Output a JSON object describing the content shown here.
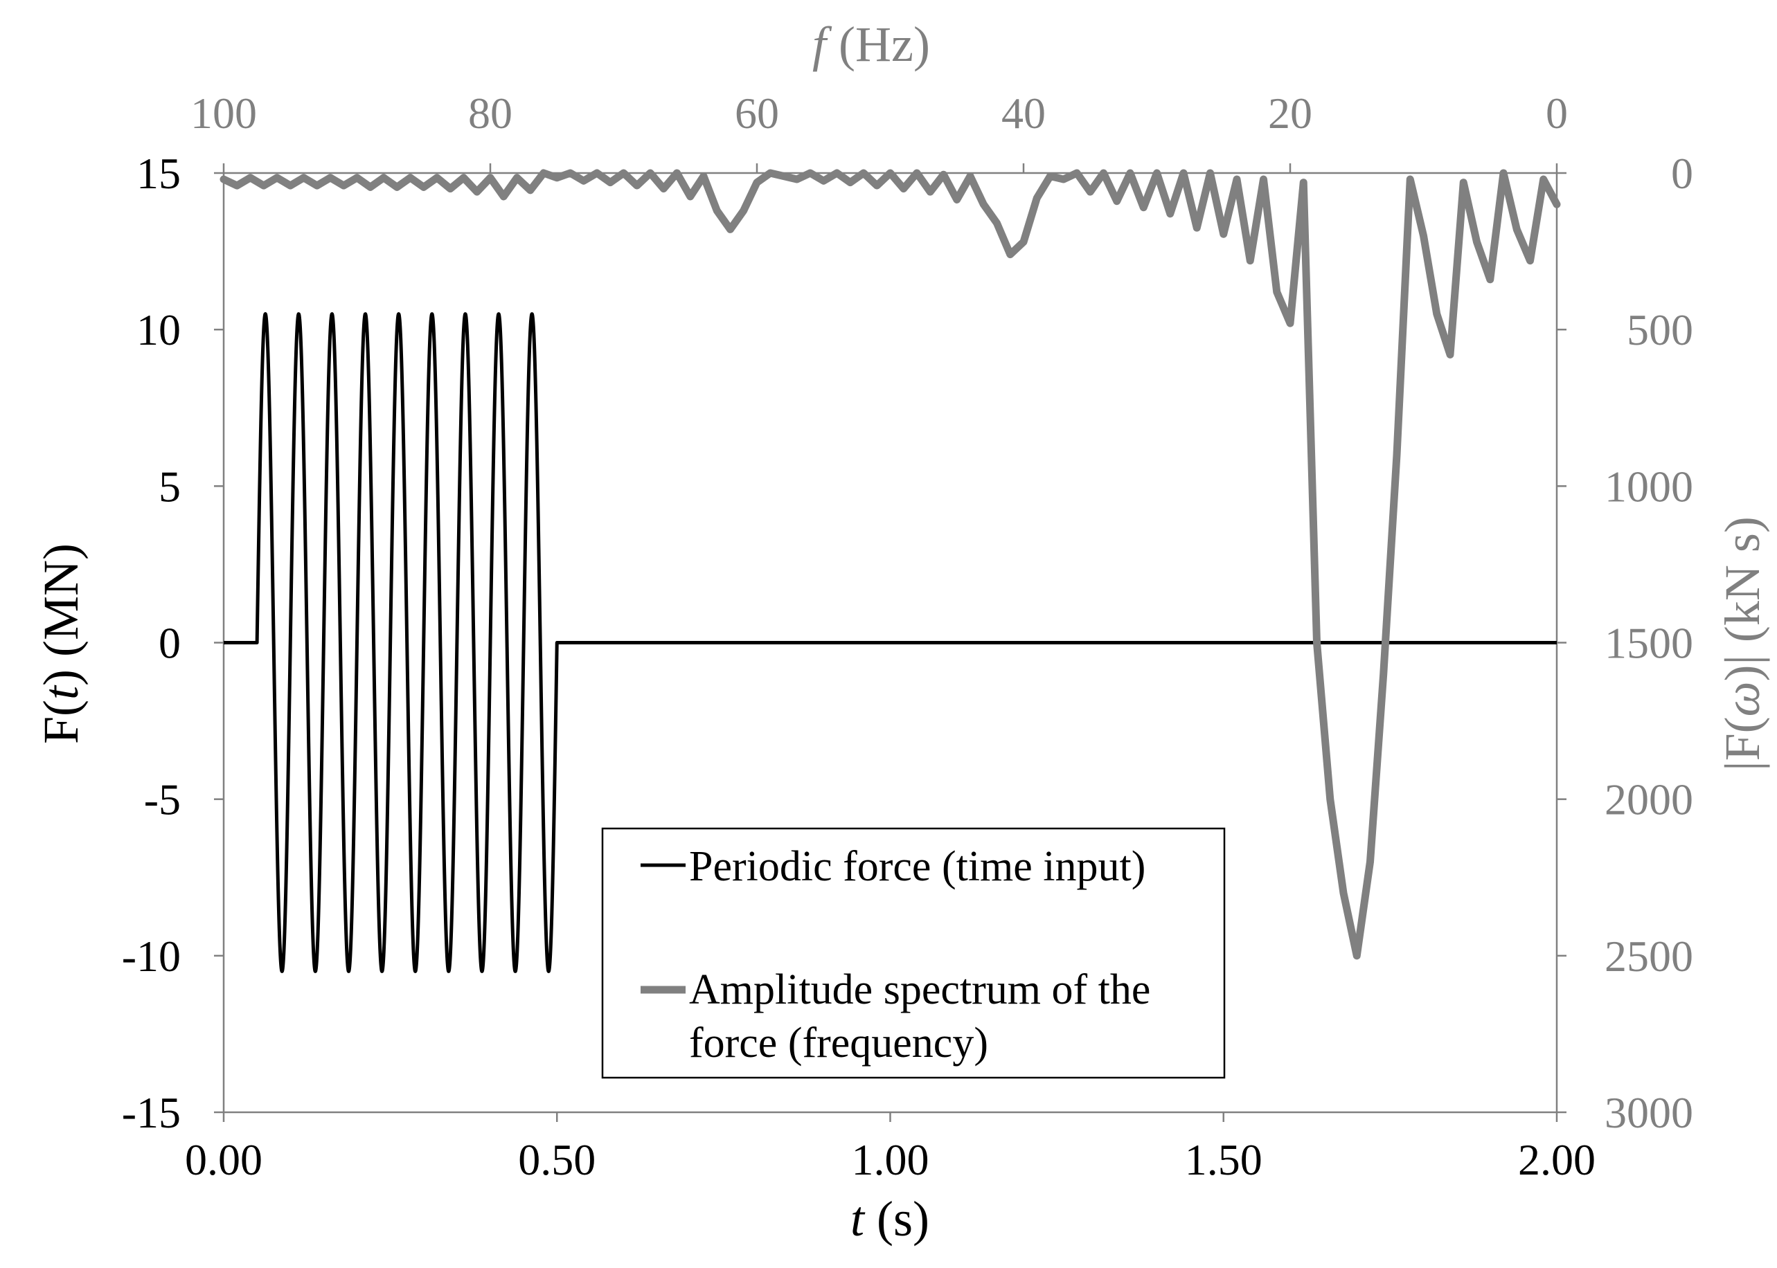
{
  "chart_data": {
    "type": "line",
    "colors": {
      "time_series": "#000000",
      "spectrum": "#808080"
    },
    "bottom_axis": {
      "label_italic": "t",
      "label_rest": " (s)",
      "range": [
        0,
        2
      ],
      "ticks": [
        "0.00",
        "0.50",
        "1.00",
        "1.50",
        "2.00"
      ],
      "tick_values": [
        0,
        0.5,
        1.0,
        1.5,
        2.0
      ]
    },
    "left_axis": {
      "label_pre": "F(",
      "label_italic": "t",
      "label_post": ") (MN)",
      "range": [
        -15,
        15
      ],
      "ticks": [
        "15",
        "10",
        "5",
        "0",
        "-5",
        "-10",
        "-15"
      ],
      "tick_values": [
        15,
        10,
        5,
        0,
        -5,
        -10,
        -15
      ]
    },
    "top_axis": {
      "label_italic": "f",
      "label_rest": " (Hz)",
      "range": [
        100,
        0
      ],
      "ticks": [
        "100",
        "80",
        "60",
        "40",
        "20",
        "0"
      ],
      "tick_values": [
        100,
        80,
        60,
        40,
        20,
        0
      ]
    },
    "right_axis": {
      "label_pre": "|F(",
      "label_italic": "ω",
      "label_post": ")| (kN s)",
      "range": [
        0,
        3000
      ],
      "reversed": true,
      "ticks": [
        "0",
        "500",
        "1000",
        "1500",
        "2000",
        "2500",
        "3000"
      ],
      "tick_values": [
        0,
        500,
        1000,
        1500,
        2000,
        2500,
        3000
      ]
    },
    "series": [
      {
        "name": "Periodic force (time input)",
        "axes": "bottom-left",
        "description": "sinusoidal burst",
        "t_start": 0.05,
        "t_end": 0.5,
        "frequency_hz": 20,
        "amplitude": 10.5,
        "baseline": 0,
        "peaks_t": [
          0.06,
          0.11,
          0.16,
          0.21,
          0.26,
          0.31,
          0.36,
          0.41,
          0.46
        ],
        "troughs_t": [
          0.085,
          0.135,
          0.185,
          0.235,
          0.285,
          0.335,
          0.385,
          0.435,
          0.485
        ]
      },
      {
        "name": "Amplitude spectrum of the force (frequency)",
        "axes": "top-right",
        "points": [
          [
            100,
            20
          ],
          [
            99,
            40
          ],
          [
            98,
            15
          ],
          [
            97,
            40
          ],
          [
            96,
            15
          ],
          [
            95,
            40
          ],
          [
            94,
            15
          ],
          [
            93,
            40
          ],
          [
            92,
            15
          ],
          [
            91,
            40
          ],
          [
            90,
            15
          ],
          [
            89,
            45
          ],
          [
            88,
            15
          ],
          [
            87,
            45
          ],
          [
            86,
            15
          ],
          [
            85,
            45
          ],
          [
            84,
            15
          ],
          [
            83,
            50
          ],
          [
            82,
            15
          ],
          [
            81,
            60
          ],
          [
            80,
            15
          ],
          [
            79,
            75
          ],
          [
            78,
            15
          ],
          [
            77,
            55
          ],
          [
            76,
            0
          ],
          [
            75,
            15
          ],
          [
            74,
            0
          ],
          [
            73,
            25
          ],
          [
            72,
            0
          ],
          [
            71,
            30
          ],
          [
            70,
            0
          ],
          [
            69,
            40
          ],
          [
            68,
            0
          ],
          [
            67,
            50
          ],
          [
            66,
            0
          ],
          [
            65,
            75
          ],
          [
            64,
            10
          ],
          [
            63,
            120
          ],
          [
            62,
            180
          ],
          [
            61,
            120
          ],
          [
            60,
            30
          ],
          [
            59,
            0
          ],
          [
            58,
            10
          ],
          [
            57,
            20
          ],
          [
            56,
            0
          ],
          [
            55,
            25
          ],
          [
            54,
            0
          ],
          [
            53,
            30
          ],
          [
            52,
            0
          ],
          [
            51,
            40
          ],
          [
            50,
            0
          ],
          [
            49,
            50
          ],
          [
            48,
            0
          ],
          [
            47,
            60
          ],
          [
            46,
            5
          ],
          [
            45,
            85
          ],
          [
            44,
            10
          ],
          [
            43,
            100
          ],
          [
            42,
            160
          ],
          [
            41,
            260
          ],
          [
            40,
            220
          ],
          [
            39,
            80
          ],
          [
            38,
            10
          ],
          [
            37,
            20
          ],
          [
            36,
            0
          ],
          [
            35,
            60
          ],
          [
            34,
            0
          ],
          [
            33,
            90
          ],
          [
            32,
            0
          ],
          [
            31,
            110
          ],
          [
            30,
            0
          ],
          [
            29,
            130
          ],
          [
            28,
            0
          ],
          [
            27,
            175
          ],
          [
            26,
            0
          ],
          [
            25,
            195
          ],
          [
            24,
            20
          ],
          [
            23,
            280
          ],
          [
            22,
            20
          ],
          [
            21,
            380
          ],
          [
            20,
            480
          ],
          [
            19,
            30
          ],
          [
            18,
            1500
          ],
          [
            17,
            2000
          ],
          [
            16,
            2300
          ],
          [
            15,
            2500
          ],
          [
            14,
            2200
          ],
          [
            13,
            1600
          ],
          [
            12,
            900
          ],
          [
            11,
            20
          ],
          [
            10,
            200
          ],
          [
            9,
            450
          ],
          [
            8,
            580
          ],
          [
            7,
            30
          ],
          [
            6,
            220
          ],
          [
            5,
            340
          ],
          [
            4,
            0
          ],
          [
            3,
            180
          ],
          [
            2,
            280
          ],
          [
            1,
            20
          ],
          [
            0,
            100
          ]
        ]
      }
    ],
    "legend": {
      "placement": "lower-center",
      "entries": [
        {
          "lines": [
            "Periodic force (time input)"
          ]
        },
        {
          "lines": [
            "Amplitude spectrum of the",
            "force (frequency)"
          ]
        }
      ]
    }
  }
}
